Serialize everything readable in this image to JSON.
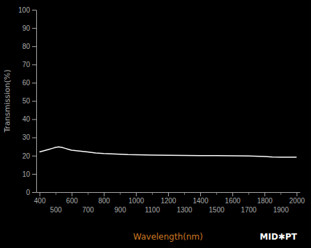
{
  "chart_data": {
    "type": "line",
    "x_label": "Wavelength(nm)",
    "y_label": "Transmission(%)",
    "x": [
      400,
      420,
      440,
      460,
      480,
      500,
      520,
      540,
      560,
      580,
      600,
      650,
      700,
      750,
      800,
      850,
      900,
      950,
      1000,
      1100,
      1200,
      1300,
      1400,
      1500,
      1600,
      1700,
      1800,
      1850,
      1900,
      1950,
      2000
    ],
    "values": [
      22,
      22.5,
      23,
      23.5,
      24,
      24.5,
      24.8,
      24.5,
      24.0,
      23.5,
      23.0,
      22.5,
      22.0,
      21.5,
      21.2,
      21.0,
      20.8,
      20.6,
      20.5,
      20.3,
      20.2,
      20.1,
      20.0,
      20.0,
      19.9,
      19.8,
      19.5,
      19.3,
      19.2,
      19.2,
      19.2
    ],
    "color": "#ffffff",
    "xlim": [
      380,
      2020
    ],
    "ylim": [
      0,
      100
    ],
    "xticks": [
      400,
      500,
      600,
      700,
      800,
      900,
      1000,
      1100,
      1200,
      1300,
      1400,
      1500,
      1600,
      1700,
      1800,
      1900,
      2000
    ],
    "yticks": [
      0,
      10,
      20,
      30,
      40,
      50,
      60,
      70,
      80,
      90,
      100
    ],
    "grid": false,
    "annotations": [
      "MID",
      "✱",
      "PT"
    ]
  }
}
